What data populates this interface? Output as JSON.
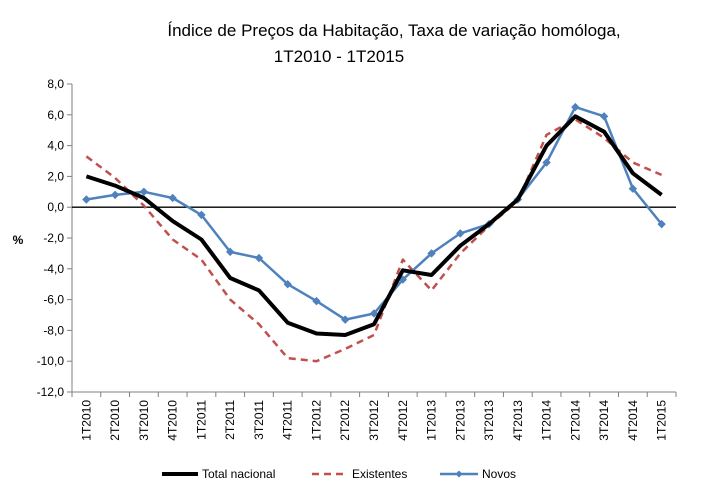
{
  "chart_data": {
    "type": "line",
    "title_line1": "Índice de Preços da Habitação, Taxa de variação homóloga,",
    "title_line2": "1T2010 - 1T2015",
    "ylabel": "%",
    "xlabel": "",
    "ylim": [
      -12,
      8
    ],
    "yticks": [
      8,
      6,
      4,
      2,
      0,
      -2,
      -4,
      -6,
      -8,
      -10,
      -12
    ],
    "ytick_labels": [
      "8,0",
      "6,0",
      "4,0",
      "2,0",
      "0,0",
      "-2,0",
      "-4,0",
      "-6,0",
      "-8,0",
      "-10,0",
      "-12,0"
    ],
    "grid": false,
    "legend": "bottom",
    "categories": [
      "1T2010",
      "2T2010",
      "3T2010",
      "4T2010",
      "1T2011",
      "2T2011",
      "3T2011",
      "4T2011",
      "1T2012",
      "2T2012",
      "3T2012",
      "4T2012",
      "1T2013",
      "2T2013",
      "3T2013",
      "4T2013",
      "1T2014",
      "2T2014",
      "3T2014",
      "4T2014",
      "1T2015"
    ],
    "series": [
      {
        "name": "Total nacional",
        "color": "#000000",
        "style": "solid-thick",
        "values": [
          2.0,
          1.4,
          0.6,
          -0.9,
          -2.1,
          -4.6,
          -5.4,
          -7.5,
          -8.2,
          -8.3,
          -7.6,
          -4.1,
          -4.4,
          -2.5,
          -1.1,
          0.5,
          4.0,
          5.9,
          4.9,
          2.2,
          0.8
        ]
      },
      {
        "name": "Existentes",
        "color": "#c0504d",
        "style": "dashed",
        "values": [
          3.3,
          1.9,
          0.1,
          -2.1,
          -3.4,
          -6.0,
          -7.6,
          -9.8,
          -10.0,
          -9.2,
          -8.3,
          -3.4,
          -5.4,
          -3.0,
          -1.2,
          0.4,
          4.7,
          5.7,
          4.5,
          2.9,
          2.1
        ]
      },
      {
        "name": "Novos",
        "color": "#4f81bd",
        "style": "solid-markers",
        "values": [
          0.5,
          0.8,
          1.0,
          0.6,
          -0.5,
          -2.9,
          -3.3,
          -5.0,
          -6.1,
          -7.3,
          -6.9,
          -4.7,
          -3.0,
          -1.7,
          -1.1,
          0.5,
          2.9,
          6.5,
          5.9,
          1.2,
          -1.1
        ]
      }
    ]
  }
}
